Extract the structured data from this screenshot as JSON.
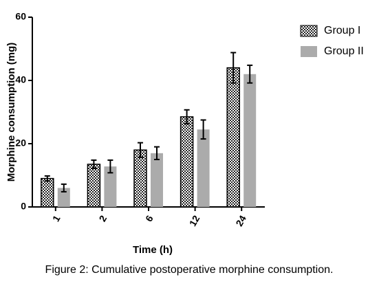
{
  "chart_data": {
    "type": "bar",
    "y_label": "Morphine consumption (mg)",
    "x_label": "Time (h)",
    "caption": "Figure 2: Cumulative postoperative morphine consumption.",
    "categories": [
      "1",
      "2",
      "6",
      "12",
      "24"
    ],
    "series": [
      {
        "name": "Group I",
        "color": "#333333",
        "values": [
          9,
          13.5,
          18,
          28.5,
          44
        ],
        "errors": [
          0.8,
          1.3,
          2.3,
          2.2,
          4.8
        ]
      },
      {
        "name": "Group II",
        "color": "#ababab",
        "values": [
          6,
          12.8,
          17,
          24.5,
          42
        ],
        "errors": [
          1.2,
          2,
          2,
          3,
          2.8
        ]
      }
    ],
    "ylim": [
      0,
      60
    ],
    "yticks": [
      0,
      20,
      40,
      60
    ],
    "legend": "right"
  }
}
